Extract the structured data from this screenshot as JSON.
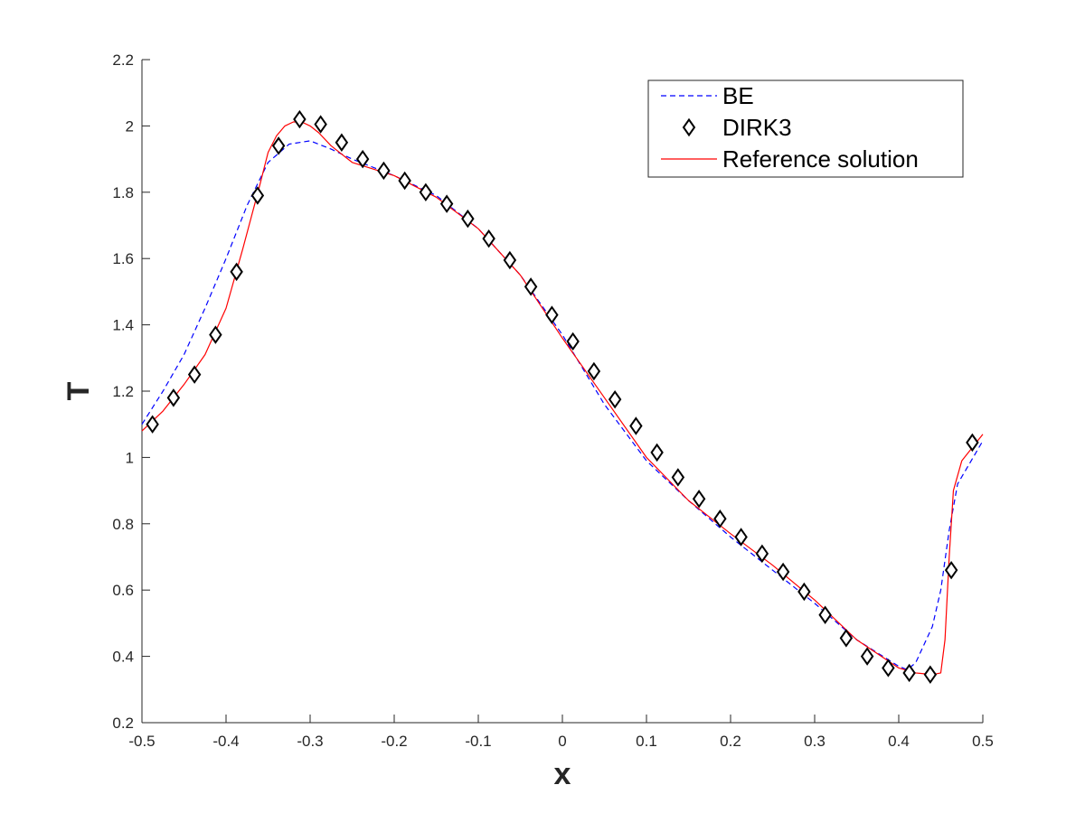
{
  "chart_data": {
    "type": "line",
    "title": "",
    "xlabel": "x",
    "ylabel": "T",
    "xlim": [
      -0.5,
      0.5
    ],
    "ylim": [
      0.2,
      2.2
    ],
    "xticks": [
      -0.5,
      -0.4,
      -0.3,
      -0.2,
      -0.1,
      0,
      0.1,
      0.2,
      0.3,
      0.4,
      0.5
    ],
    "xtick_labels": [
      "-0.5",
      "-0.4",
      "-0.3",
      "-0.2",
      "-0.1",
      "0",
      "0.1",
      "0.2",
      "0.3",
      "0.4",
      "0.5"
    ],
    "yticks": [
      0.2,
      0.4,
      0.6,
      0.8,
      1.0,
      1.2,
      1.4,
      1.6,
      1.8,
      2.0,
      2.2
    ],
    "ytick_labels": [
      "0.2",
      "0.4",
      "0.6",
      "0.8",
      "1",
      "1.2",
      "1.4",
      "1.6",
      "1.8",
      "2",
      "2.2"
    ],
    "grid": false,
    "legend_position": "top-right",
    "series": [
      {
        "name": "BE",
        "style": "dashed",
        "color": "#0000ff",
        "x": [
          -0.5,
          -0.475,
          -0.45,
          -0.425,
          -0.4,
          -0.375,
          -0.35,
          -0.325,
          -0.3,
          -0.275,
          -0.25,
          -0.2,
          -0.15,
          -0.1,
          -0.05,
          0,
          0.05,
          0.1,
          0.15,
          0.2,
          0.25,
          0.3,
          0.35,
          0.4,
          0.41,
          0.42,
          0.44,
          0.45,
          0.46,
          0.47,
          0.5
        ],
        "y": [
          1.1,
          1.2,
          1.31,
          1.45,
          1.6,
          1.76,
          1.89,
          1.945,
          1.955,
          1.93,
          1.9,
          1.85,
          1.79,
          1.69,
          1.55,
          1.37,
          1.16,
          0.99,
          0.87,
          0.76,
          0.66,
          0.56,
          0.45,
          0.37,
          0.36,
          0.38,
          0.49,
          0.6,
          0.78,
          0.92,
          1.05
        ]
      },
      {
        "name": "DIRK3",
        "style": "markers",
        "marker": "diamond",
        "color": "#000000",
        "x": [
          -0.4875,
          -0.4625,
          -0.4375,
          -0.4125,
          -0.3875,
          -0.3625,
          -0.3375,
          -0.3125,
          -0.2875,
          -0.2625,
          -0.2375,
          -0.2125,
          -0.1875,
          -0.1625,
          -0.1375,
          -0.1125,
          -0.0875,
          -0.0625,
          -0.0375,
          -0.0125,
          0.0125,
          0.0375,
          0.0625,
          0.0875,
          0.1125,
          0.1375,
          0.1625,
          0.1875,
          0.2125,
          0.2375,
          0.2625,
          0.2875,
          0.3125,
          0.3375,
          0.3625,
          0.3875,
          0.4125,
          0.4375,
          0.4625,
          0.4875
        ],
        "y": [
          1.1,
          1.18,
          1.25,
          1.37,
          1.56,
          1.79,
          1.94,
          2.02,
          2.005,
          1.95,
          1.9,
          1.865,
          1.835,
          1.8,
          1.765,
          1.72,
          1.66,
          1.595,
          1.515,
          1.43,
          1.35,
          1.26,
          1.175,
          1.095,
          1.015,
          0.94,
          0.875,
          0.815,
          0.76,
          0.71,
          0.655,
          0.595,
          0.525,
          0.455,
          0.4,
          0.365,
          0.35,
          0.345,
          0.66,
          1.045
        ]
      },
      {
        "name": "Reference solution",
        "style": "solid",
        "color": "#ff0000",
        "x": [
          -0.5,
          -0.475,
          -0.45,
          -0.425,
          -0.4,
          -0.38,
          -0.36,
          -0.35,
          -0.34,
          -0.33,
          -0.32,
          -0.31,
          -0.3,
          -0.29,
          -0.275,
          -0.25,
          -0.2,
          -0.15,
          -0.1,
          -0.05,
          0,
          0.05,
          0.1,
          0.15,
          0.2,
          0.25,
          0.3,
          0.35,
          0.4,
          0.42,
          0.44,
          0.45,
          0.455,
          0.46,
          0.465,
          0.475,
          0.5
        ],
        "y": [
          1.08,
          1.14,
          1.22,
          1.31,
          1.45,
          1.63,
          1.82,
          1.92,
          1.97,
          2.0,
          2.012,
          2.012,
          2.0,
          1.98,
          1.94,
          1.89,
          1.85,
          1.785,
          1.69,
          1.55,
          1.36,
          1.18,
          1.0,
          0.87,
          0.77,
          0.675,
          0.57,
          0.45,
          0.365,
          0.35,
          0.345,
          0.35,
          0.45,
          0.7,
          0.9,
          0.99,
          1.07
        ]
      }
    ]
  }
}
